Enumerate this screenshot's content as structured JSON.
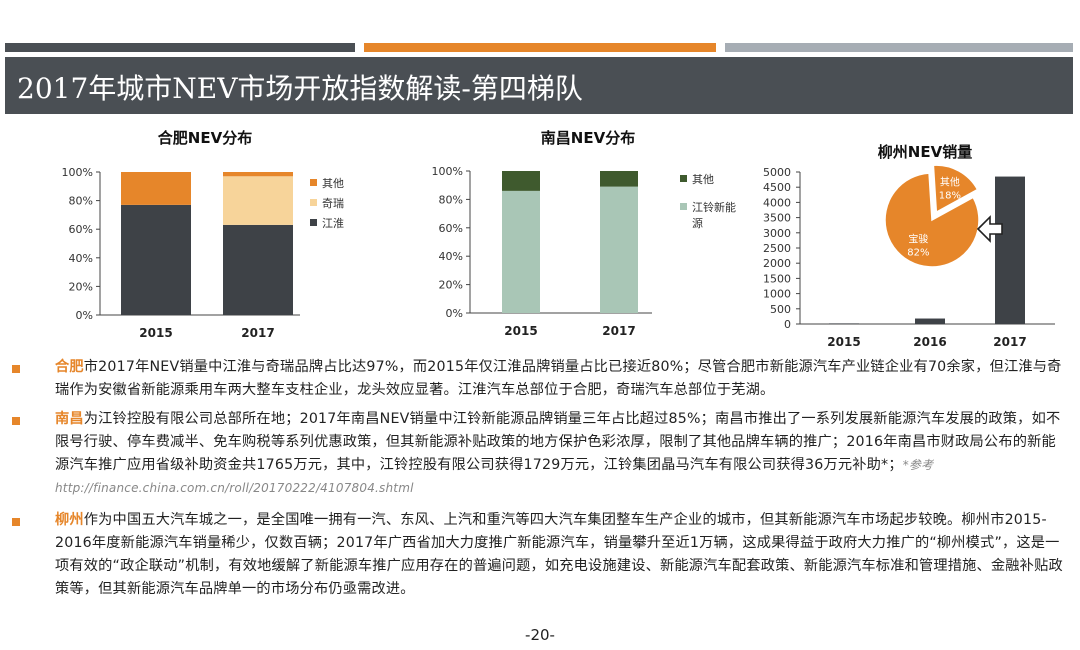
{
  "title": "2017年城市NEV市场开放指数解读-第四梯队",
  "header_bars": {
    "colors": [
      "#4a4f54",
      "#e6862a",
      "#a6adb4"
    ]
  },
  "colors": {
    "accent": "#e6862a",
    "hefei_other": "#e6862a",
    "hefei_chery": "#f7d49a",
    "hefei_jac": "#3e4247",
    "nanchang_other": "#3f5a2e",
    "nanchang_jmc": "#a9c6b6",
    "liuzhou_bar": "#3e4247",
    "liuzhou_pie": "#e6862a"
  },
  "chart_data": [
    {
      "type": "bar",
      "stacked": true,
      "title": "合肥NEV分布",
      "categories": [
        "2015",
        "2017"
      ],
      "yticks": [
        "0%",
        "20%",
        "40%",
        "60%",
        "80%",
        "100%"
      ],
      "ylim": [
        0,
        100
      ],
      "series": [
        {
          "name": "江淮",
          "values": [
            77,
            63
          ]
        },
        {
          "name": "奇瑞",
          "values": [
            0,
            34
          ]
        },
        {
          "name": "其他",
          "values": [
            23,
            3
          ]
        }
      ],
      "legend": "right"
    },
    {
      "type": "bar",
      "stacked": true,
      "title": "南昌NEV分布",
      "categories": [
        "2015",
        "2017"
      ],
      "yticks": [
        "0%",
        "20%",
        "40%",
        "60%",
        "80%",
        "100%"
      ],
      "ylim": [
        0,
        100
      ],
      "series": [
        {
          "name": "江铃新能源",
          "values": [
            86,
            89
          ]
        },
        {
          "name": "其他",
          "values": [
            14,
            11
          ]
        }
      ],
      "legend": "right"
    },
    {
      "type": "bar",
      "title": "柳州NEV销量",
      "categories": [
        "2015",
        "2016",
        "2017"
      ],
      "yticks": [
        "0",
        "500",
        "1000",
        "1500",
        "2000",
        "2500",
        "3000",
        "3500",
        "4000",
        "4500",
        "5000"
      ],
      "ylim": [
        0,
        5000
      ],
      "values": [
        20,
        180,
        4850
      ],
      "inset_pie": {
        "type": "pie",
        "slices": [
          {
            "name": "宝骏",
            "label": "82%",
            "value": 82
          },
          {
            "name": "其他",
            "label": "18%",
            "value": 18
          }
        ]
      }
    }
  ],
  "paragraphs": [
    {
      "city": "合肥",
      "text": "市2017年NEV销量中江淮与奇瑞品牌占比达97%，而2015年仅江淮品牌销量占比已接近80%；尽管合肥市新能源汽车产业链企业有70余家，但江淮与奇瑞作为安徽省新能源乘用车两大整车支柱企业，龙头效应显著。江淮汽车总部位于合肥，奇瑞汽车总部位于芜湖。"
    },
    {
      "city": "南昌",
      "text": "为江铃控股有限公司总部所在地；2017年南昌NEV销量中江铃新能源品牌销量三年占比超过85%；南昌市推出了一系列发展新能源汽车发展的政策，如不限号行驶、停车费减半、免车购税等系列优惠政策，但其新能源补贴政策的地方保护色彩浓厚，限制了其他品牌车辆的推广；2016年南昌市财政局公布的新能源汽车推广应用省级补助资金共1765万元，其中，江铃控股有限公司获得1729万元，江铃集团晶马汽车有限公司获得36万元补助*；",
      "ref": "*参考http://finance.china.com.cn/roll/20170222/4107804.shtml"
    },
    {
      "city": "柳州",
      "text": "作为中国五大汽车城之一，是全国唯一拥有一汽、东风、上汽和重汽等四大汽车集团整车生产企业的城市，但其新能源汽车市场起步较晚。柳州市2015-2016年度新能源汽车销量稀少，仅数百辆；2017年广西省加大力度推广新能源汽车，销量攀升至近1万辆，这成果得益于政府大力推广的“柳州模式”，这是一项有效的“政企联动”机制，有效地缓解了新能源车推广应用存在的普遍问题，如充电设施建设、新能源汽车配套政策、新能源汽车标准和管理措施、金融补贴政策等，但其新能源汽车品牌单一的市场分布仍亟需改进。"
    }
  ],
  "page_number": "-20-"
}
